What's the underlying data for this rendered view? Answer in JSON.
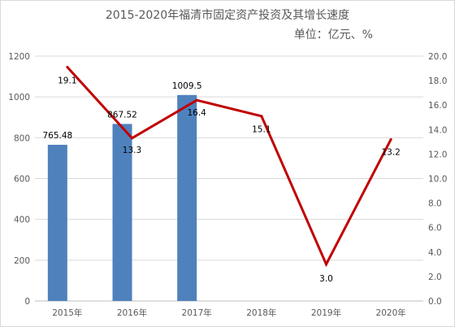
{
  "chart_data": {
    "type": "bar",
    "title": "2015-2020年福清市固定资产投资及其增长速度",
    "subtitle": "单位：亿元、%",
    "categories": [
      "2015年",
      "2016年",
      "2017年",
      "2018年",
      "2019年",
      "2020年"
    ],
    "series": [
      {
        "type": "bar",
        "axis": "left",
        "color": "#4f81bd",
        "values": [
          765.48,
          867.52,
          1009.5,
          null,
          null,
          null
        ],
        "labels": [
          "765.48",
          "867.52",
          "1009.5",
          "",
          "",
          ""
        ]
      },
      {
        "type": "line",
        "axis": "right",
        "color": "#c00000",
        "values": [
          19.1,
          13.3,
          16.4,
          15.1,
          3.0,
          13.2
        ],
        "labels": [
          "19.1",
          "13.3",
          "16.4",
          "15.1",
          "3.0",
          "13.2"
        ]
      }
    ],
    "y_left": {
      "ylim": [
        0,
        1200
      ],
      "ticks": [
        "0",
        "200",
        "400",
        "600",
        "800",
        "1000",
        "1200"
      ]
    },
    "y_right": {
      "ylim": [
        0,
        20
      ],
      "ticks": [
        "0.0",
        "2.0",
        "4.0",
        "6.0",
        "8.0",
        "10.0",
        "12.0",
        "14.0",
        "16.0",
        "18.0",
        "20.0"
      ]
    },
    "grid": true,
    "legend": "none"
  }
}
